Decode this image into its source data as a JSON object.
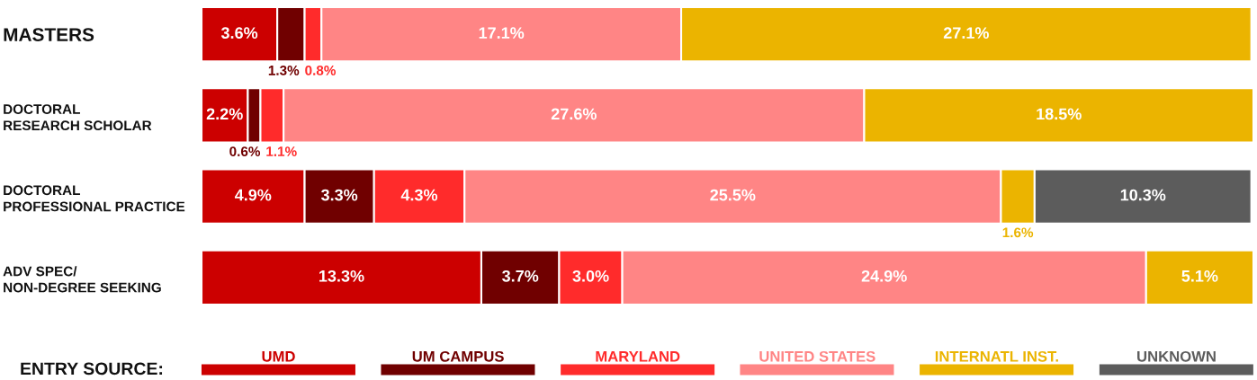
{
  "chart_data": {
    "type": "bar",
    "orientation": "horizontal",
    "stacked": true,
    "categories": [
      "MASTERS",
      "DOCTORAL\nRESEARCH SCHOLAR",
      "DOCTORAL\nPROFESSIONAL PRACTICE",
      "ADV SPEC/\nNON-DEGREE SEEKING"
    ],
    "series": [
      {
        "name": "UMD",
        "color": "#cc0000",
        "values": [
          3.6,
          2.2,
          4.9,
          13.3
        ],
        "value_labels": [
          "3.6%",
          "2.2%",
          "4.9%",
          "13.3%"
        ]
      },
      {
        "name": "UM CAMPUS",
        "color": "#700000",
        "values": [
          1.3,
          0.6,
          3.3,
          3.7
        ],
        "value_labels": [
          "1.3%",
          "0.6%",
          "3.3%",
          "3.7%"
        ]
      },
      {
        "name": "MARYLAND",
        "color": "#ff2b2b",
        "values": [
          0.8,
          1.1,
          4.3,
          3.0
        ],
        "value_labels": [
          "0.8%",
          "1.1%",
          "4.3%",
          "3.0%"
        ]
      },
      {
        "name": "UNITED STATES",
        "color": "#ff8585",
        "values": [
          17.1,
          27.6,
          25.5,
          24.9
        ],
        "value_labels": [
          "17.1%",
          "27.6%",
          "25.5%",
          "24.9%"
        ]
      },
      {
        "name": "INTERNATL INST.",
        "color": "#ebb400",
        "values": [
          27.1,
          18.5,
          1.6,
          5.1
        ],
        "value_labels": [
          "27.1%",
          "18.5%",
          "1.6%",
          "5.1%"
        ]
      },
      {
        "name": "UNKNOWN",
        "color": "#5c5c5c",
        "values": [
          null,
          null,
          10.3,
          null
        ],
        "value_labels": [
          null,
          null,
          "10.3%",
          null
        ]
      }
    ],
    "xlim": [
      0,
      50
    ],
    "tick_labels": "y",
    "legend": "bottom",
    "legend_title": "ENTRY SOURCE:"
  }
}
